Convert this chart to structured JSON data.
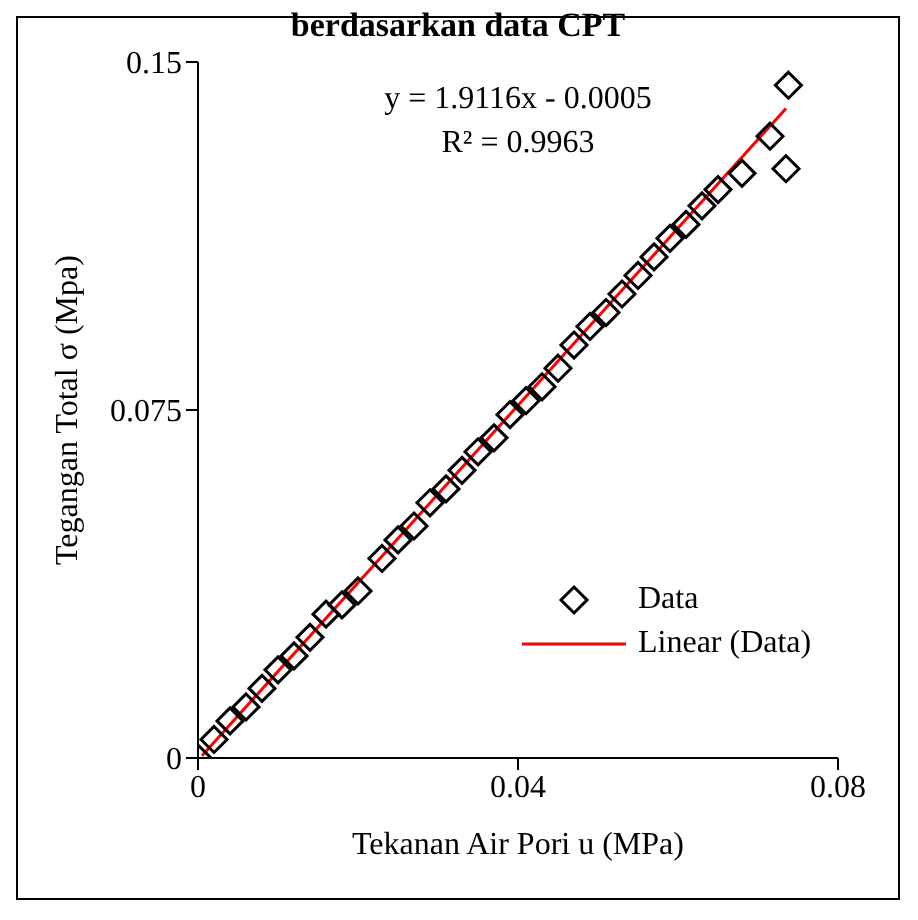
{
  "chart_data": {
    "type": "scatter",
    "title": "berdasarkan data CPT",
    "xlabel": "Tekanan Air Pori u (MPa)",
    "ylabel": "Tegangan Total σ (Mpa)",
    "annotations": [
      "y = 1.9116x - 0.0005",
      "R² = 0.9963"
    ],
    "xlim": [
      0,
      0.08
    ],
    "xticks": [
      0,
      0.04,
      0.08
    ],
    "ylim": [
      0,
      0.15
    ],
    "yticks": [
      0,
      0.075,
      0.15
    ],
    "grid": false,
    "legend": "bottom right",
    "marker": "diamond",
    "series": [
      {
        "name": "Data",
        "type": "scatter",
        "color": "#000000",
        "x": [
          0,
          0.002,
          0.004,
          0.006,
          0.008,
          0.01,
          0.012,
          0.014,
          0.016,
          0.018,
          0.02,
          0.023,
          0.025,
          0.027,
          0.029,
          0.031,
          0.033,
          0.035,
          0.037,
          0.039,
          0.041,
          0.043,
          0.045,
          0.047,
          0.049,
          0.051,
          0.053,
          0.055,
          0.057,
          0.059,
          0.061,
          0.063,
          0.065,
          0.068,
          0.0715,
          0.0735,
          0.0738
        ],
        "values": [
          0,
          0.004,
          0.008,
          0.011,
          0.015,
          0.019,
          0.022,
          0.026,
          0.031,
          0.033,
          0.036,
          0.043,
          0.047,
          0.05,
          0.055,
          0.058,
          0.062,
          0.066,
          0.069,
          0.074,
          0.077,
          0.08,
          0.084,
          0.089,
          0.093,
          0.096,
          0.1,
          0.104,
          0.108,
          0.112,
          0.115,
          0.119,
          0.1225,
          0.126,
          0.134,
          0.127,
          0.145
        ]
      },
      {
        "name": "Linear (Data)",
        "type": "line",
        "color": "#ff0000",
        "line_style": "solid",
        "marker": "none",
        "x": [
          0.0005,
          0.0735
        ],
        "values": [
          0.0005,
          0.14
        ]
      }
    ]
  }
}
